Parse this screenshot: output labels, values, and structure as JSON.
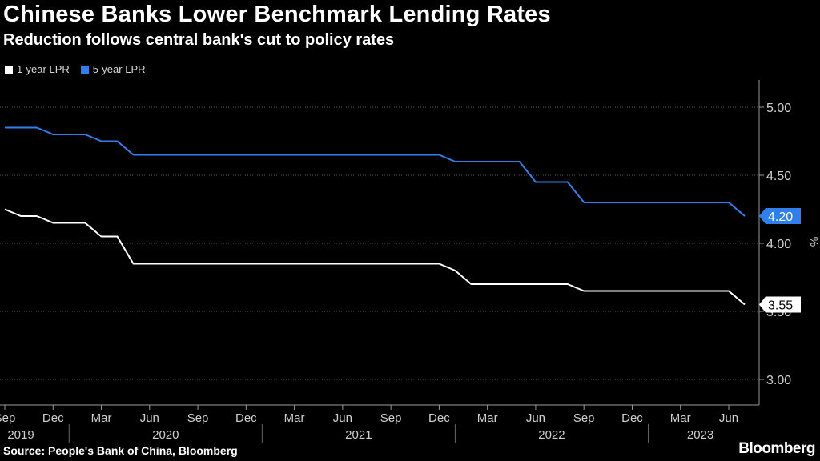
{
  "title": "Chinese Banks Lower Benchmark Lending Rates",
  "subtitle": "Reduction follows central bank's cut to policy rates",
  "source": "Source: People's Bank of China, Bloomberg",
  "brand": "Bloomberg",
  "colors": {
    "one_year": "#ffffff",
    "five_year": "#2f80ed",
    "background": "#000000"
  },
  "chart_data": {
    "type": "line",
    "title": "Chinese Banks Lower Benchmark Lending Rates",
    "subtitle": "Reduction follows central bank's cut to policy rates",
    "ylabel": "%",
    "ylim": [
      2.85,
      5.2
    ],
    "xlim": [
      2019.667,
      2023.5
    ],
    "y_ticks": [
      "5.00",
      "4.50",
      "4.00",
      "3.50",
      "3.00"
    ],
    "y_tick_values": [
      5.0,
      4.5,
      4.0,
      3.5,
      3.0
    ],
    "x_ticks": [
      {
        "label": "Sep",
        "t": 2019.667
      },
      {
        "label": "Dec",
        "t": 2019.917
      },
      {
        "label": "Mar",
        "t": 2020.167
      },
      {
        "label": "Jun",
        "t": 2020.417
      },
      {
        "label": "Sep",
        "t": 2020.667
      },
      {
        "label": "Dec",
        "t": 2020.917
      },
      {
        "label": "Mar",
        "t": 2021.167
      },
      {
        "label": "Jun",
        "t": 2021.417
      },
      {
        "label": "Sep",
        "t": 2021.667
      },
      {
        "label": "Dec",
        "t": 2021.917
      },
      {
        "label": "Mar",
        "t": 2022.167
      },
      {
        "label": "Jun",
        "t": 2022.417
      },
      {
        "label": "Sep",
        "t": 2022.667
      },
      {
        "label": "Dec",
        "t": 2022.917
      },
      {
        "label": "Mar",
        "t": 2023.167
      },
      {
        "label": "Jun",
        "t": 2023.417
      }
    ],
    "years": [
      {
        "label": "2019",
        "t": 2019.75
      },
      {
        "label": "2020",
        "t": 2020.5
      },
      {
        "label": "2021",
        "t": 2021.5
      },
      {
        "label": "2022",
        "t": 2022.5
      },
      {
        "label": "2023",
        "t": 2023.27
      }
    ],
    "year_dividers": [
      2020.0,
      2021.0,
      2022.0,
      2023.0
    ],
    "series": [
      {
        "name": "1-year LPR",
        "color": "#ffffff",
        "end_label": "3.55",
        "points": [
          [
            2019.667,
            4.25
          ],
          [
            2019.75,
            4.2
          ],
          [
            2019.833,
            4.2
          ],
          [
            2019.917,
            4.15
          ],
          [
            2020.083,
            4.15
          ],
          [
            2020.167,
            4.05
          ],
          [
            2020.25,
            4.05
          ],
          [
            2020.333,
            3.85
          ],
          [
            2021.917,
            3.85
          ],
          [
            2022.0,
            3.8
          ],
          [
            2022.083,
            3.7
          ],
          [
            2022.583,
            3.7
          ],
          [
            2022.667,
            3.65
          ],
          [
            2023.417,
            3.65
          ],
          [
            2023.5,
            3.55
          ]
        ]
      },
      {
        "name": "5-year LPR",
        "color": "#2f80ed",
        "end_label": "4.20",
        "points": [
          [
            2019.667,
            4.85
          ],
          [
            2019.833,
            4.85
          ],
          [
            2019.917,
            4.8
          ],
          [
            2020.083,
            4.8
          ],
          [
            2020.167,
            4.75
          ],
          [
            2020.25,
            4.75
          ],
          [
            2020.333,
            4.65
          ],
          [
            2021.917,
            4.65
          ],
          [
            2022.0,
            4.6
          ],
          [
            2022.333,
            4.6
          ],
          [
            2022.417,
            4.45
          ],
          [
            2022.583,
            4.45
          ],
          [
            2022.667,
            4.3
          ],
          [
            2023.417,
            4.3
          ],
          [
            2023.5,
            4.2
          ]
        ]
      }
    ]
  }
}
